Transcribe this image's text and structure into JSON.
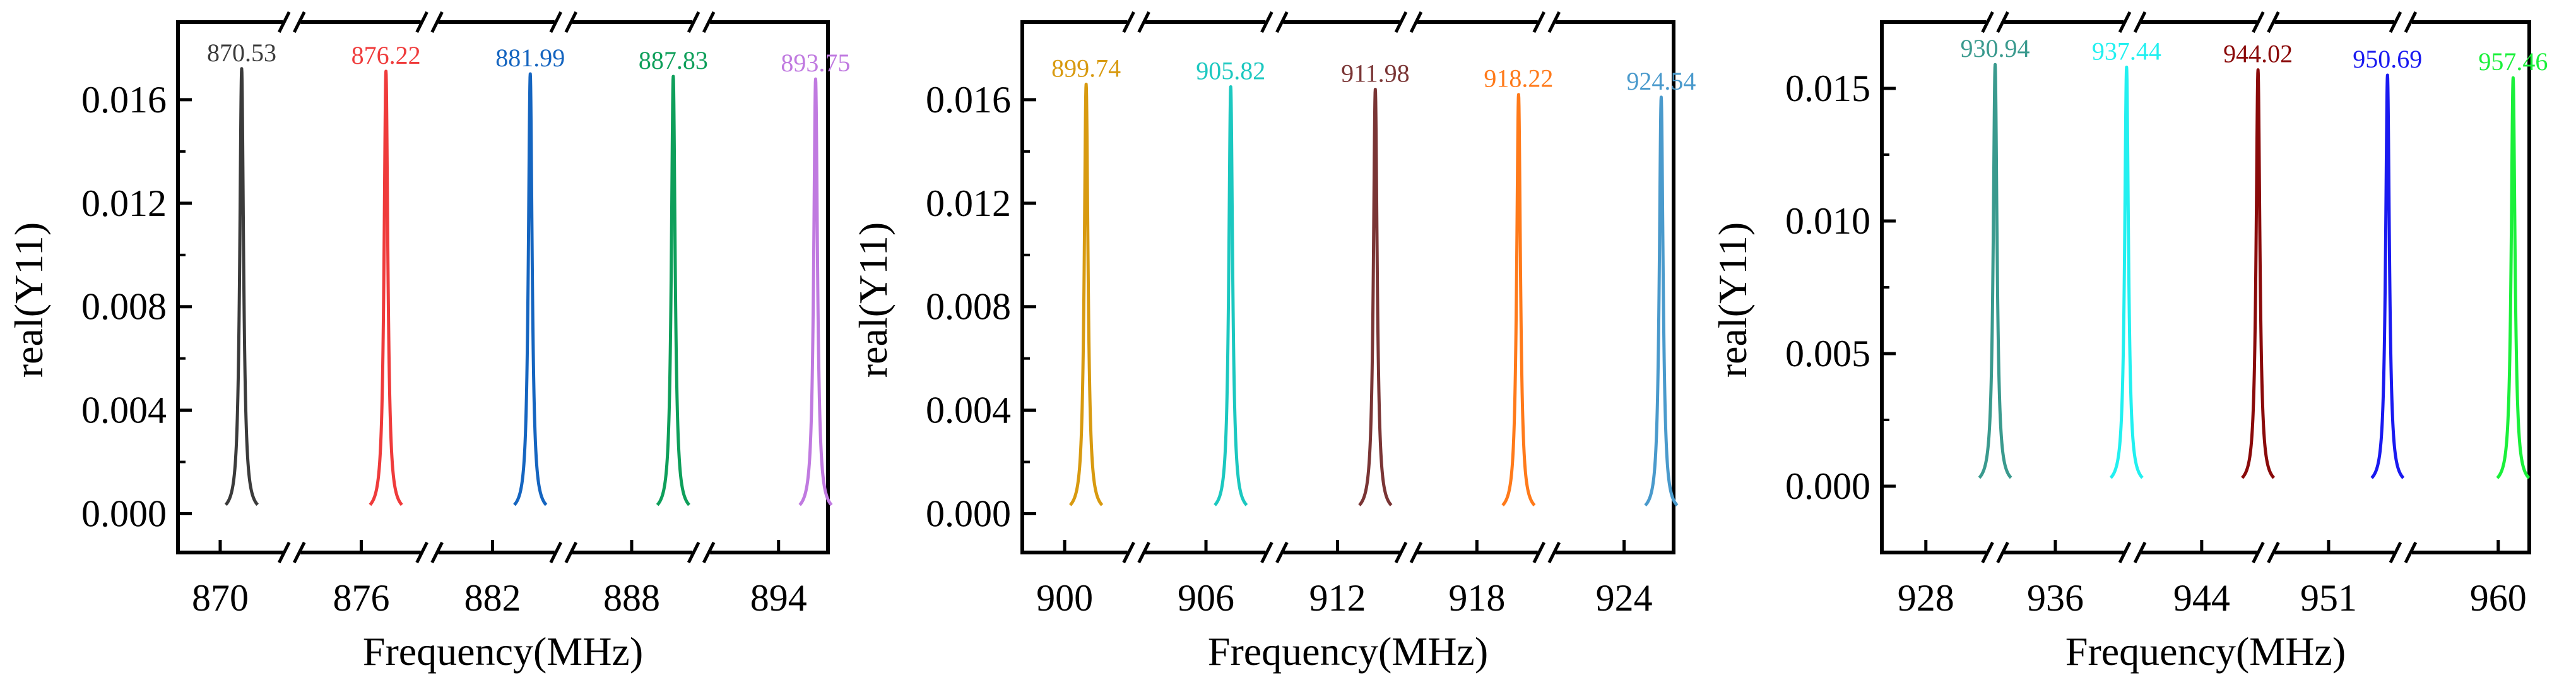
{
  "figure": {
    "panels": 3,
    "break_mark": "//"
  },
  "chart_data": [
    {
      "type": "line",
      "xlabel": "Frequency(MHz)",
      "ylabel": "real(Y11)",
      "ylim": [
        -0.0015,
        0.019
      ],
      "yticks": [
        0.0,
        0.004,
        0.008,
        0.012,
        0.016
      ],
      "ytick_labels": [
        "0.000",
        "0.004",
        "0.008",
        "0.012",
        "0.016"
      ],
      "xtick_labels": [
        "870",
        "876",
        "882",
        "888",
        "894"
      ],
      "broken_x_axis": true,
      "series": [
        {
          "name": "870.53",
          "peak_frequency": 870.53,
          "peak_value": 0.0172,
          "color": "#3b3b3b"
        },
        {
          "name": "876.22",
          "peak_frequency": 876.22,
          "peak_value": 0.0171,
          "color": "#ef3b3b"
        },
        {
          "name": "881.99",
          "peak_frequency": 881.99,
          "peak_value": 0.017,
          "color": "#1565c0"
        },
        {
          "name": "887.83",
          "peak_frequency": 887.83,
          "peak_value": 0.0169,
          "color": "#0e9f5a"
        },
        {
          "name": "893.75",
          "peak_frequency": 893.75,
          "peak_value": 0.0168,
          "color": "#c07ae0"
        }
      ]
    },
    {
      "type": "line",
      "xlabel": "Frequency(MHz)",
      "ylabel": "real(Y11)",
      "ylim": [
        -0.0015,
        0.019
      ],
      "yticks": [
        0.0,
        0.004,
        0.008,
        0.012,
        0.016
      ],
      "ytick_labels": [
        "0.000",
        "0.004",
        "0.008",
        "0.012",
        "0.016"
      ],
      "xtick_labels": [
        "900",
        "906",
        "912",
        "918",
        "924"
      ],
      "broken_x_axis": true,
      "series": [
        {
          "name": "899.74",
          "peak_frequency": 899.74,
          "peak_value": 0.0166,
          "color": "#d89a10"
        },
        {
          "name": "905.82",
          "peak_frequency": 905.82,
          "peak_value": 0.0165,
          "color": "#1cc8c0"
        },
        {
          "name": "911.98",
          "peak_frequency": 911.98,
          "peak_value": 0.0164,
          "color": "#7a3535"
        },
        {
          "name": "918.22",
          "peak_frequency": 918.22,
          "peak_value": 0.0162,
          "color": "#ff7a1a"
        },
        {
          "name": "924.54",
          "peak_frequency": 924.54,
          "peak_value": 0.0161,
          "color": "#4a9acc"
        }
      ]
    },
    {
      "type": "line",
      "xlabel": "Frequency(MHz)",
      "ylabel": "real(Y11)",
      "ylim": [
        -0.0025,
        0.0175
      ],
      "yticks": [
        0.0,
        0.005,
        0.01,
        0.015
      ],
      "ytick_labels": [
        "0.000",
        "0.005",
        "0.010",
        "0.015"
      ],
      "xtick_labels": [
        "928",
        "936",
        "944",
        "951",
        "960"
      ],
      "broken_x_axis": true,
      "series": [
        {
          "name": "930.94",
          "peak_frequency": 930.94,
          "peak_value": 0.0159,
          "color": "#3a9a8e"
        },
        {
          "name": "937.44",
          "peak_frequency": 937.44,
          "peak_value": 0.0158,
          "color": "#22f0f0"
        },
        {
          "name": "944.02",
          "peak_frequency": 944.02,
          "peak_value": 0.0157,
          "color": "#8a0a0a"
        },
        {
          "name": "950.69",
          "peak_frequency": 950.69,
          "peak_value": 0.0155,
          "color": "#1a1af0"
        },
        {
          "name": "957.46",
          "peak_frequency": 957.46,
          "peak_value": 0.0154,
          "color": "#1af03a"
        }
      ]
    }
  ]
}
